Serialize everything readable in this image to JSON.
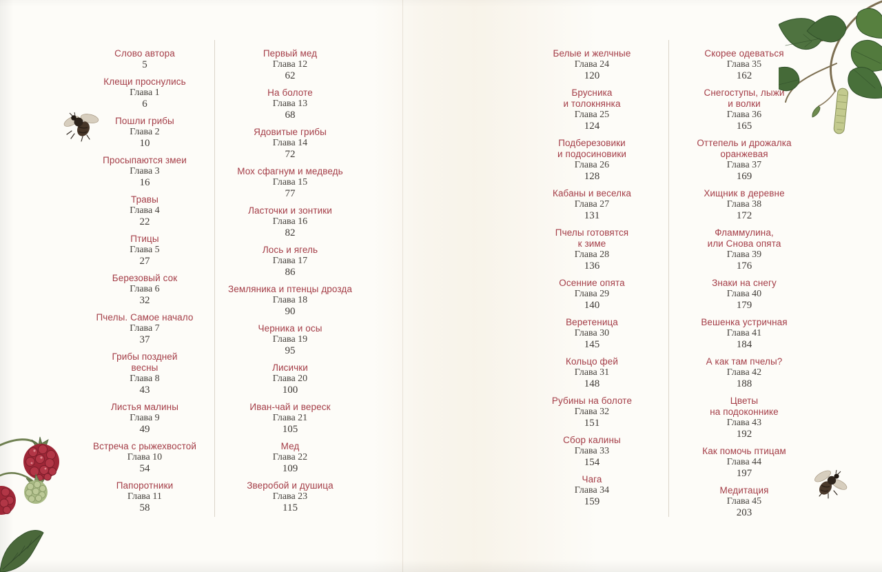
{
  "colors": {
    "background": "#fdfcf8",
    "accent_title_red": "#a43d47",
    "body_text": "#44403b",
    "divider": "#dbd5c9",
    "leaf_green": "#4f7340",
    "berry_red": "#b23646",
    "unripe_green": "#bcc997"
  },
  "columns": [
    {
      "entries": [
        {
          "title": "Слово автора",
          "chapter": "",
          "page": "5"
        },
        {
          "title": "Клещи проснулись",
          "chapter": "Глава 1",
          "page": "6"
        },
        {
          "title": "Пошли грибы",
          "chapter": "Глава 2",
          "page": "10"
        },
        {
          "title": "Просыпаются змеи",
          "chapter": "Глава 3",
          "page": "16"
        },
        {
          "title": "Травы",
          "chapter": "Глава 4",
          "page": "22"
        },
        {
          "title": "Птицы",
          "chapter": "Глава 5",
          "page": "27"
        },
        {
          "title": "Березовый сок",
          "chapter": "Глава 6",
          "page": "32"
        },
        {
          "title": "Пчелы. Самое начало",
          "chapter": "Глава 7",
          "page": "37"
        },
        {
          "title": "Грибы поздней\nвесны",
          "chapter": "Глава 8",
          "page": "43"
        },
        {
          "title": "Листья малины",
          "chapter": "Глава 9",
          "page": "49"
        },
        {
          "title": "Встреча с рыжехвостой",
          "chapter": "Глава 10",
          "page": "54"
        },
        {
          "title": "Папоротники",
          "chapter": "Глава 11",
          "page": "58"
        }
      ]
    },
    {
      "entries": [
        {
          "title": "Первый мед",
          "chapter": "Глава 12",
          "page": "62"
        },
        {
          "title": "На болоте",
          "chapter": "Глава 13",
          "page": "68"
        },
        {
          "title": "Ядовитые грибы",
          "chapter": "Глава 14",
          "page": "72"
        },
        {
          "title": "Мох сфагнум и медведь",
          "chapter": "Глава 15",
          "page": "77"
        },
        {
          "title": "Ласточки и зонтики",
          "chapter": "Глава 16",
          "page": "82"
        },
        {
          "title": "Лось и ягель",
          "chapter": "Глава 17",
          "page": "86"
        },
        {
          "title": "Земляника и птенцы дрозда",
          "chapter": "Глава 18",
          "page": "90"
        },
        {
          "title": "Черника и осы",
          "chapter": "Глава 19",
          "page": "95"
        },
        {
          "title": "Лисички",
          "chapter": "Глава 20",
          "page": "100"
        },
        {
          "title": "Иван-чай и вереск",
          "chapter": "Глава 21",
          "page": "105"
        },
        {
          "title": "Мед",
          "chapter": "Глава 22",
          "page": "109"
        },
        {
          "title": "Зверобой и душица",
          "chapter": "Глава 23",
          "page": "115"
        }
      ]
    },
    {
      "entries": [
        {
          "title": "Белые и желчные",
          "chapter": "Глава 24",
          "page": "120"
        },
        {
          "title": "Брусника\nи толокнянка",
          "chapter": "Глава 25",
          "page": "124"
        },
        {
          "title": "Подберезовики\nи подосиновики",
          "chapter": "Глава 26",
          "page": "128"
        },
        {
          "title": "Кабаны и веселка",
          "chapter": "Глава 27",
          "page": "131"
        },
        {
          "title": "Пчелы готовятся\nк зиме",
          "chapter": "Глава 28",
          "page": "136"
        },
        {
          "title": "Осенние опята",
          "chapter": "Глава 29",
          "page": "140"
        },
        {
          "title": "Веретеница",
          "chapter": "Глава 30",
          "page": "145"
        },
        {
          "title": "Кольцо фей",
          "chapter": "Глава 31",
          "page": "148"
        },
        {
          "title": "Рубины на болоте",
          "chapter": "Глава 32",
          "page": "151"
        },
        {
          "title": "Сбор калины",
          "chapter": "Глава 33",
          "page": "154"
        },
        {
          "title": "Чага",
          "chapter": "Глава 34",
          "page": "159"
        }
      ]
    },
    {
      "entries": [
        {
          "title": "Скорее одеваться",
          "chapter": "Глава 35",
          "page": "162"
        },
        {
          "title": "Снегоступы, лыжи\nи волки",
          "chapter": "Глава 36",
          "page": "165"
        },
        {
          "title": "Оттепель и дрожалка\nоранжевая",
          "chapter": "Глава 37",
          "page": "169"
        },
        {
          "title": "Хищник в деревне",
          "chapter": "Глава 38",
          "page": "172"
        },
        {
          "title": "Фламмулина,\nили Снова опята",
          "chapter": "Глава 39",
          "page": "176"
        },
        {
          "title": "Знаки на снегу",
          "chapter": "Глава 40",
          "page": "179"
        },
        {
          "title": "Вешенка устричная",
          "chapter": "Глава 41",
          "page": "184"
        },
        {
          "title": "А как там пчелы?",
          "chapter": "Глава 42",
          "page": "188"
        },
        {
          "title": "Цветы\nна подоконнике",
          "chapter": "Глава 43",
          "page": "192"
        },
        {
          "title": "Как помочь птицам",
          "chapter": "Глава 44",
          "page": "197"
        },
        {
          "title": "Медитация",
          "chapter": "Глава 45",
          "page": "203"
        }
      ]
    }
  ],
  "decorations": {
    "top_right": "birch-branch-illustration",
    "bottom_left": "raspberry-branch-illustration",
    "middle_left": "bee-illustration",
    "middle_right": "bee-illustration"
  }
}
